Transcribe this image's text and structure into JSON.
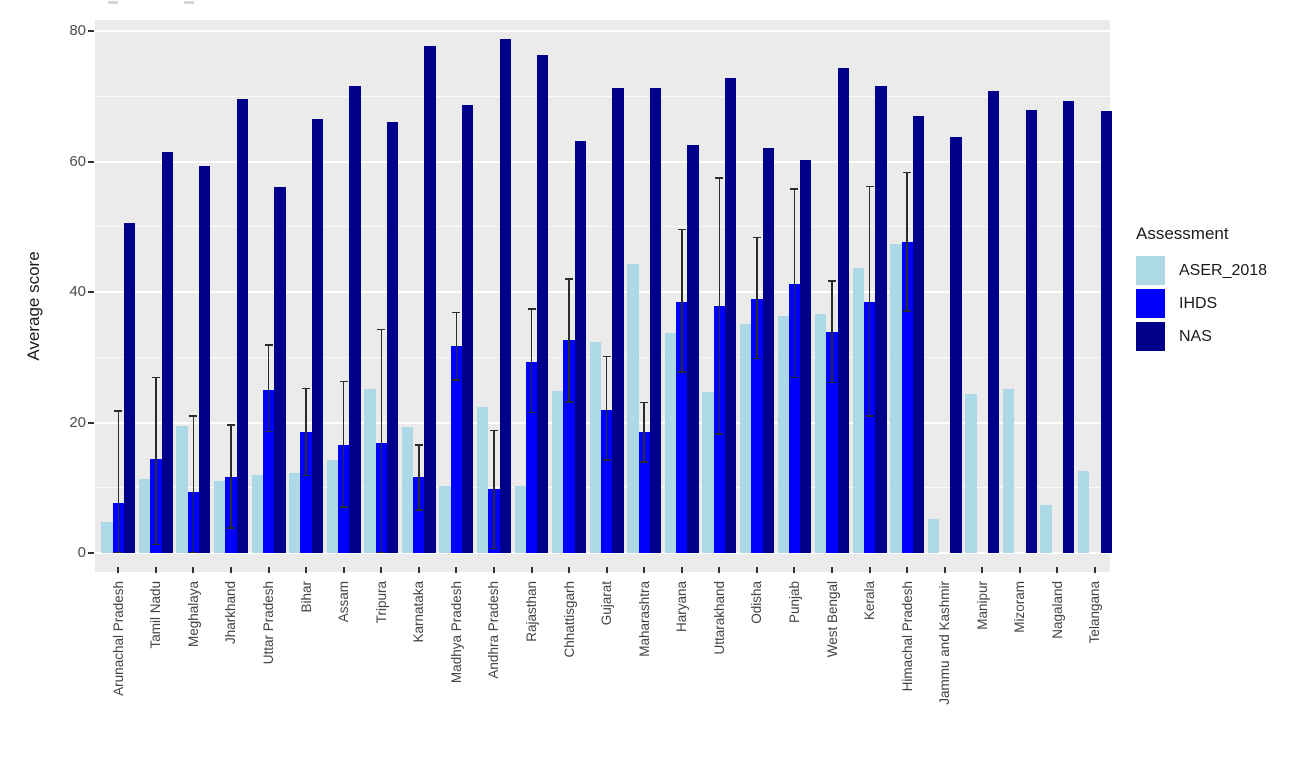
{
  "figure": {
    "kind": "grouped-bar-chart-screenshot"
  },
  "y_axis": {
    "title": "Average score",
    "tick_labels": [
      "0",
      "20",
      "40",
      "60",
      "80"
    ]
  },
  "legend": {
    "title": "Assessment",
    "entries": [
      {
        "label": "ASER_2018",
        "color": "#ADD8E6"
      },
      {
        "label": "IHDS",
        "color": "#0000FF"
      },
      {
        "label": "NAS",
        "color": "#00008B"
      }
    ]
  },
  "chart_data": {
    "type": "bar",
    "title": "",
    "xlabel": "",
    "ylabel": "Average score",
    "ylim": [
      0,
      80
    ],
    "y_major_ticks": [
      0,
      20,
      40,
      60,
      80
    ],
    "y_minor_ticks": [
      10,
      30,
      50,
      70
    ],
    "grid": true,
    "legend_position": "right",
    "panel_background": "#EBEBEB",
    "categories": [
      "Arunachal Pradesh",
      "Tamil Nadu",
      "Meghalaya",
      "Jharkhand",
      "Uttar Pradesh",
      "Bihar",
      "Assam",
      "Tripura",
      "Karnataka",
      "Madhya Pradesh",
      "Andhra Pradesh",
      "Rajasthan",
      "Chhattisgarh",
      "Gujarat",
      "Maharashtra",
      "Haryana",
      "Uttarakhand",
      "Odisha",
      "Punjab",
      "West Bengal",
      "Kerala",
      "Himachal Pradesh",
      "Jammu and Kashmir",
      "Manipur",
      "Mizoram",
      "Nagaland",
      "Telangana"
    ],
    "series": [
      {
        "name": "ASER_2018",
        "color": "#ADD8E6",
        "values": [
          4.7,
          11.3,
          19.5,
          11.0,
          12.0,
          12.3,
          14.3,
          25.2,
          19.3,
          10.2,
          22.4,
          10.2,
          24.9,
          32.3,
          44.3,
          33.7,
          24.7,
          35.1,
          36.3,
          36.6,
          43.7,
          47.4,
          5.2,
          24.4,
          25.1,
          7.3,
          12.5
        ]
      },
      {
        "name": "IHDS",
        "color": "#0000FF",
        "values": [
          7.7,
          14.4,
          9.3,
          11.6,
          25.0,
          18.5,
          16.6,
          16.9,
          11.6,
          31.7,
          9.8,
          29.2,
          32.7,
          21.9,
          18.5,
          38.5,
          37.8,
          38.9,
          41.2,
          33.8,
          38.4,
          47.6,
          null,
          null,
          null,
          null,
          null
        ],
        "error_low": [
          0,
          1.2,
          0,
          3.7,
          18.5,
          11.8,
          6.9,
          0,
          6.5,
          26.4,
          0.6,
          21.4,
          23.0,
          14.1,
          13.8,
          27.6,
          18.1,
          29.7,
          26.8,
          26.0,
          20.9,
          37.0,
          null,
          null,
          null,
          null,
          null
        ],
        "error_high": [
          21.9,
          27.0,
          21.1,
          19.7,
          32.0,
          25.3,
          26.4,
          34.4,
          16.7,
          37.0,
          18.9,
          37.5,
          42.1,
          30.2,
          23.2,
          49.7,
          57.6,
          48.5,
          55.9,
          41.8,
          56.3,
          58.4,
          null,
          null,
          null,
          null,
          null
        ]
      },
      {
        "name": "NAS",
        "color": "#00008B",
        "values": [
          50.6,
          61.5,
          59.3,
          69.6,
          56.1,
          66.5,
          71.6,
          66.0,
          77.7,
          68.7,
          78.8,
          76.3,
          63.2,
          71.2,
          71.2,
          62.6,
          72.8,
          62.1,
          60.2,
          74.4,
          71.5,
          67.0,
          63.7,
          70.8,
          67.9,
          69.2,
          67.7
        ]
      }
    ]
  }
}
